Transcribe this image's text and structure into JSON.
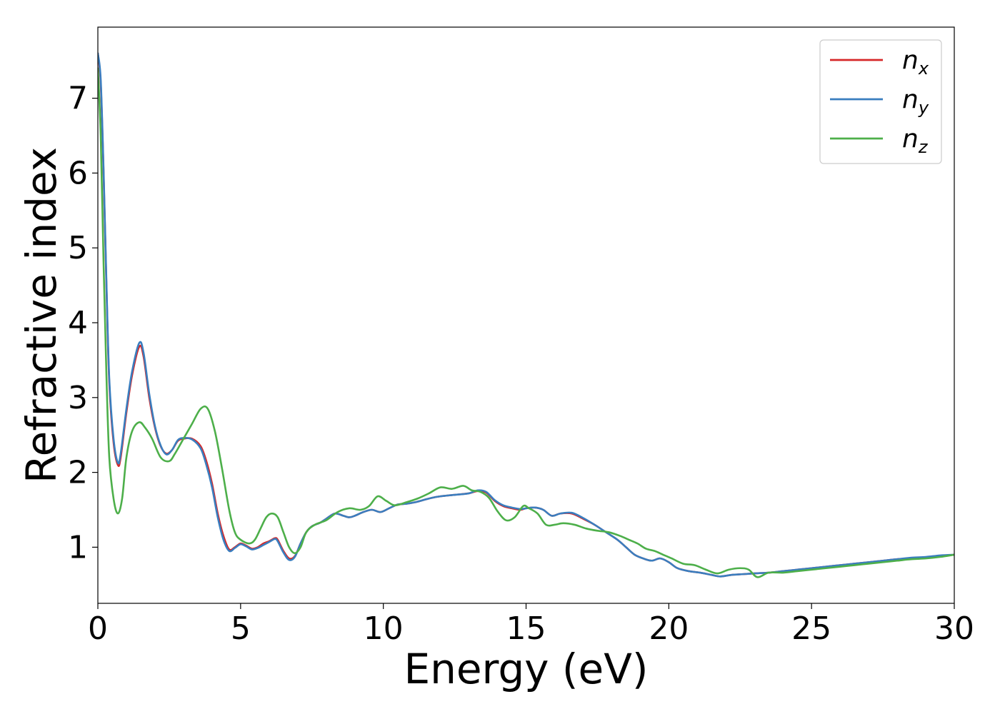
{
  "chart_data": {
    "type": "line",
    "title": "",
    "xlabel": "Energy (eV)",
    "ylabel": "Refractive index",
    "xlim": [
      0,
      30
    ],
    "ylim": [
      0.25,
      7.95
    ],
    "xticks": [
      0,
      5,
      10,
      15,
      20,
      25,
      30
    ],
    "yticks": [
      1,
      2,
      3,
      4,
      5,
      6,
      7
    ],
    "grid": false,
    "legend_position": "top-right",
    "series": [
      {
        "name": "n",
        "subscript": "x",
        "color": "#d62728",
        "x": [
          0,
          0.1,
          0.2,
          0.3,
          0.4,
          0.55,
          0.7,
          0.8,
          1.0,
          1.2,
          1.45,
          1.6,
          1.8,
          2.0,
          2.2,
          2.4,
          2.6,
          2.8,
          3.0,
          3.3,
          3.6,
          3.8,
          4.0,
          4.2,
          4.4,
          4.6,
          4.8,
          5.0,
          5.2,
          5.4,
          5.6,
          5.8,
          6.0,
          6.2,
          6.3,
          6.5,
          6.7,
          6.9,
          7.1,
          7.3,
          7.5,
          7.8,
          8.0,
          8.3,
          8.6,
          8.8,
          9.0,
          9.3,
          9.6,
          9.9,
          10.2,
          10.5,
          10.8,
          11.1,
          11.4,
          11.7,
          12.0,
          12.5,
          13.0,
          13.3,
          13.6,
          13.9,
          14.2,
          14.5,
          14.8,
          15.0,
          15.3,
          15.6,
          15.9,
          16.2,
          16.6,
          17.0,
          17.4,
          17.8,
          18.2,
          18.5,
          18.8,
          19.1,
          19.4,
          19.7,
          20.0,
          20.3,
          20.7,
          21.1,
          21.5,
          21.8,
          22.2,
          22.6,
          23.0,
          23.5,
          24.0,
          24.5,
          25.0,
          25.5,
          26.0,
          26.5,
          27.0,
          27.5,
          28.0,
          28.5,
          29.0,
          29.5,
          30.0
        ],
        "y": [
          7.6,
          7.2,
          6.0,
          4.5,
          3.2,
          2.4,
          2.1,
          2.2,
          2.8,
          3.3,
          3.68,
          3.55,
          3.0,
          2.6,
          2.35,
          2.25,
          2.3,
          2.42,
          2.45,
          2.45,
          2.35,
          2.15,
          1.85,
          1.45,
          1.15,
          0.97,
          1.0,
          1.05,
          1.02,
          0.98,
          1.0,
          1.05,
          1.08,
          1.12,
          1.1,
          0.95,
          0.85,
          0.88,
          1.05,
          1.2,
          1.28,
          1.33,
          1.38,
          1.45,
          1.42,
          1.4,
          1.42,
          1.47,
          1.5,
          1.47,
          1.52,
          1.57,
          1.58,
          1.6,
          1.63,
          1.66,
          1.68,
          1.7,
          1.72,
          1.75,
          1.73,
          1.62,
          1.55,
          1.52,
          1.5,
          1.52,
          1.53,
          1.5,
          1.42,
          1.45,
          1.45,
          1.38,
          1.3,
          1.2,
          1.1,
          1.0,
          0.9,
          0.85,
          0.82,
          0.85,
          0.8,
          0.72,
          0.68,
          0.66,
          0.63,
          0.61,
          0.63,
          0.64,
          0.65,
          0.66,
          0.68,
          0.7,
          0.72,
          0.74,
          0.76,
          0.78,
          0.8,
          0.82,
          0.84,
          0.85,
          0.86,
          0.88,
          0.9
        ]
      },
      {
        "name": "n",
        "subscript": "y",
        "color": "#3a7ebf",
        "x": [
          0,
          0.1,
          0.2,
          0.3,
          0.4,
          0.55,
          0.7,
          0.8,
          1.0,
          1.2,
          1.45,
          1.6,
          1.8,
          2.0,
          2.2,
          2.4,
          2.6,
          2.8,
          3.0,
          3.3,
          3.6,
          3.8,
          4.0,
          4.2,
          4.4,
          4.6,
          4.8,
          5.0,
          5.2,
          5.4,
          5.6,
          5.8,
          6.0,
          6.2,
          6.3,
          6.5,
          6.7,
          6.9,
          7.1,
          7.3,
          7.5,
          7.8,
          8.0,
          8.3,
          8.6,
          8.8,
          9.0,
          9.3,
          9.6,
          9.9,
          10.2,
          10.5,
          10.8,
          11.1,
          11.4,
          11.7,
          12.0,
          12.5,
          13.0,
          13.3,
          13.6,
          13.9,
          14.2,
          14.5,
          14.8,
          15.0,
          15.3,
          15.6,
          15.9,
          16.2,
          16.6,
          17.0,
          17.4,
          17.8,
          18.2,
          18.5,
          18.8,
          19.1,
          19.4,
          19.7,
          20.0,
          20.3,
          20.7,
          21.1,
          21.5,
          21.8,
          22.2,
          22.6,
          23.0,
          23.5,
          24.0,
          24.5,
          25.0,
          25.5,
          26.0,
          26.5,
          27.0,
          27.5,
          28.0,
          28.5,
          29.0,
          29.5,
          30.0
        ],
        "y": [
          7.6,
          7.25,
          6.05,
          4.55,
          3.25,
          2.45,
          2.13,
          2.25,
          2.85,
          3.35,
          3.73,
          3.6,
          3.05,
          2.62,
          2.36,
          2.24,
          2.3,
          2.43,
          2.46,
          2.44,
          2.32,
          2.1,
          1.8,
          1.4,
          1.1,
          0.95,
          0.99,
          1.04,
          1.01,
          0.97,
          0.99,
          1.03,
          1.07,
          1.11,
          1.08,
          0.93,
          0.83,
          0.87,
          1.05,
          1.2,
          1.28,
          1.33,
          1.38,
          1.45,
          1.42,
          1.4,
          1.42,
          1.47,
          1.5,
          1.47,
          1.52,
          1.57,
          1.58,
          1.6,
          1.63,
          1.66,
          1.68,
          1.7,
          1.72,
          1.76,
          1.74,
          1.63,
          1.56,
          1.53,
          1.51,
          1.52,
          1.53,
          1.5,
          1.42,
          1.45,
          1.46,
          1.39,
          1.3,
          1.2,
          1.1,
          1.0,
          0.9,
          0.85,
          0.82,
          0.85,
          0.8,
          0.72,
          0.68,
          0.66,
          0.63,
          0.61,
          0.63,
          0.64,
          0.65,
          0.66,
          0.68,
          0.7,
          0.72,
          0.74,
          0.76,
          0.78,
          0.8,
          0.82,
          0.84,
          0.86,
          0.87,
          0.89,
          0.9
        ]
      },
      {
        "name": "n",
        "subscript": "z",
        "color": "#4daf4a",
        "x": [
          0,
          0.1,
          0.2,
          0.3,
          0.4,
          0.55,
          0.7,
          0.85,
          1.0,
          1.2,
          1.45,
          1.65,
          1.9,
          2.2,
          2.5,
          2.7,
          3.0,
          3.3,
          3.6,
          3.85,
          4.1,
          4.35,
          4.6,
          4.8,
          5.0,
          5.3,
          5.5,
          5.7,
          5.9,
          6.1,
          6.3,
          6.5,
          6.7,
          6.9,
          7.1,
          7.3,
          7.6,
          8.0,
          8.4,
          8.8,
          9.2,
          9.5,
          9.8,
          10.1,
          10.4,
          10.8,
          11.2,
          11.6,
          12.0,
          12.4,
          12.8,
          13.1,
          13.4,
          13.7,
          14.0,
          14.3,
          14.6,
          14.9,
          15.1,
          15.4,
          15.7,
          16.0,
          16.3,
          16.7,
          17.1,
          17.5,
          17.9,
          18.3,
          18.6,
          18.9,
          19.2,
          19.5,
          19.8,
          20.1,
          20.5,
          20.9,
          21.3,
          21.7,
          22.1,
          22.5,
          22.8,
          23.1,
          23.5,
          24.0,
          24.5,
          25.0,
          25.5,
          26.0,
          26.5,
          27.0,
          27.5,
          28.0,
          28.5,
          29.0,
          29.5,
          30.0
        ],
        "y": [
          7.4,
          6.5,
          4.8,
          3.3,
          2.2,
          1.65,
          1.45,
          1.65,
          2.2,
          2.55,
          2.67,
          2.6,
          2.45,
          2.2,
          2.15,
          2.25,
          2.45,
          2.65,
          2.85,
          2.85,
          2.55,
          2.05,
          1.5,
          1.2,
          1.1,
          1.05,
          1.1,
          1.25,
          1.4,
          1.45,
          1.4,
          1.2,
          1.0,
          0.92,
          1.0,
          1.2,
          1.3,
          1.36,
          1.47,
          1.52,
          1.5,
          1.55,
          1.68,
          1.62,
          1.56,
          1.6,
          1.65,
          1.72,
          1.8,
          1.78,
          1.82,
          1.76,
          1.74,
          1.66,
          1.48,
          1.36,
          1.4,
          1.55,
          1.52,
          1.45,
          1.3,
          1.3,
          1.32,
          1.3,
          1.25,
          1.22,
          1.2,
          1.15,
          1.1,
          1.05,
          0.98,
          0.95,
          0.9,
          0.85,
          0.78,
          0.76,
          0.7,
          0.65,
          0.7,
          0.72,
          0.7,
          0.6,
          0.66,
          0.66,
          0.68,
          0.7,
          0.72,
          0.74,
          0.76,
          0.78,
          0.8,
          0.82,
          0.84,
          0.85,
          0.87,
          0.9
        ]
      }
    ]
  }
}
